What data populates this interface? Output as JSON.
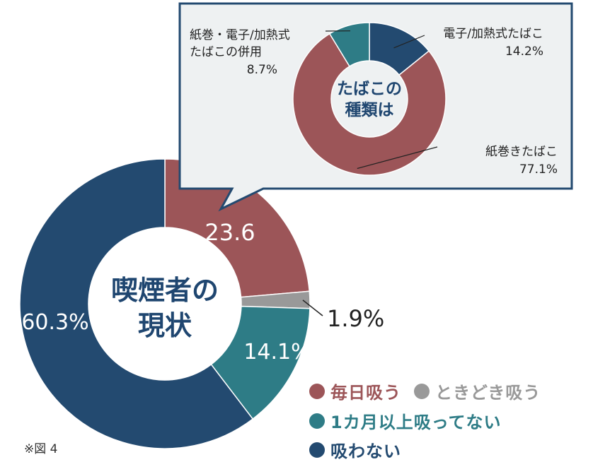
{
  "colors": {
    "daily": "#9c5558",
    "sometimes": "#999999",
    "under_month": "#2e7c86",
    "never": "#234a70",
    "inset_bg": "#eef1f2",
    "inset_border": "#234a70",
    "center_text": "#1f4670"
  },
  "chart_data": [
    {
      "type": "pie",
      "center_label": [
        "喫煙者の",
        "現状"
      ],
      "slices": [
        {
          "name": "毎日吸う",
          "value": 23.6,
          "label": "23.6",
          "color_key": "daily"
        },
        {
          "name": "ときどき吸う",
          "value": 1.9,
          "label": "1.9%",
          "color_key": "sometimes"
        },
        {
          "name": "1カ月以上吸ってない",
          "value": 14.1,
          "label": "14.1%",
          "color_key": "under_month"
        },
        {
          "name": "吸わない",
          "value": 60.3,
          "label": "60.3%",
          "color_key": "never"
        }
      ],
      "legend_placement": "bottom-right"
    },
    {
      "type": "pie",
      "center_label": [
        "たばこの",
        "種類は"
      ],
      "slices": [
        {
          "name": "電子/加熱式たばこ",
          "label_lines": [
            "電子/加熱式たばこ",
            "14.2%"
          ],
          "value": 14.2,
          "color_key": "never"
        },
        {
          "name": "紙巻きたばこ",
          "label_lines": [
            "紙巻きたばこ",
            "77.1%"
          ],
          "value": 77.1,
          "color_key": "daily"
        },
        {
          "name": "紙巻・電子/加熱式たばこの併用",
          "label_lines": [
            "紙巻・電子/加熱式",
            "たばこの併用",
            "8.7%"
          ],
          "value": 8.7,
          "color_key": "under_month"
        }
      ]
    }
  ],
  "legend": [
    {
      "label": "毎日吸う",
      "color_key": "daily"
    },
    {
      "label": "ときどき吸う",
      "color_key": "sometimes"
    },
    {
      "label": "1カ月以上吸ってない",
      "color_key": "under_month"
    },
    {
      "label": "吸わない",
      "color_key": "never"
    }
  ],
  "figure_label": "※図 4"
}
